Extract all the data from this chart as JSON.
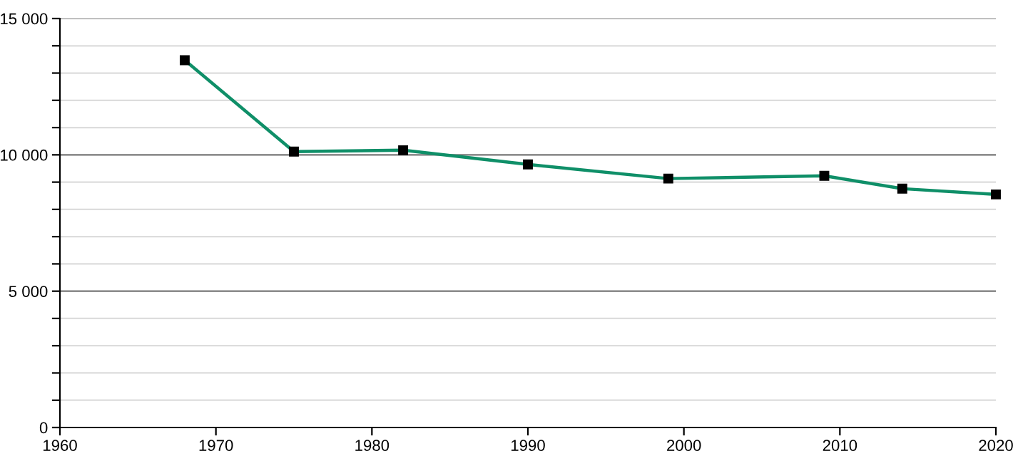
{
  "chart_data": {
    "type": "line",
    "x": [
      1968,
      1975,
      1982,
      1990,
      1999,
      2009,
      2014,
      2020
    ],
    "series": [
      {
        "color": "#0f8f68",
        "values": [
          13470,
          10120,
          10170,
          9650,
          9130,
          9230,
          8760,
          8550
        ]
      }
    ],
    "marker": "square",
    "xlim": [
      1960,
      2020
    ],
    "xticks": [
      1960,
      1970,
      1980,
      1990,
      2000,
      2010,
      2020
    ],
    "ylim": [
      0,
      15000
    ],
    "yticks": [
      {
        "value": 0,
        "label": "0"
      },
      {
        "value": 1000,
        "label": null
      },
      {
        "value": 2000,
        "label": null
      },
      {
        "value": 3000,
        "label": null
      },
      {
        "value": 4000,
        "label": null
      },
      {
        "value": 5000,
        "label": "5 000"
      },
      {
        "value": 6000,
        "label": null
      },
      {
        "value": 7000,
        "label": null
      },
      {
        "value": 8000,
        "label": null
      },
      {
        "value": 9000,
        "label": null
      },
      {
        "value": 10000,
        "label": "10 000"
      },
      {
        "value": 11000,
        "label": null
      },
      {
        "value": 12000,
        "label": null
      },
      {
        "value": 13000,
        "label": null
      },
      {
        "value": 14000,
        "label": null
      },
      {
        "value": 15000,
        "label": "15 000"
      }
    ],
    "grid": "y"
  }
}
